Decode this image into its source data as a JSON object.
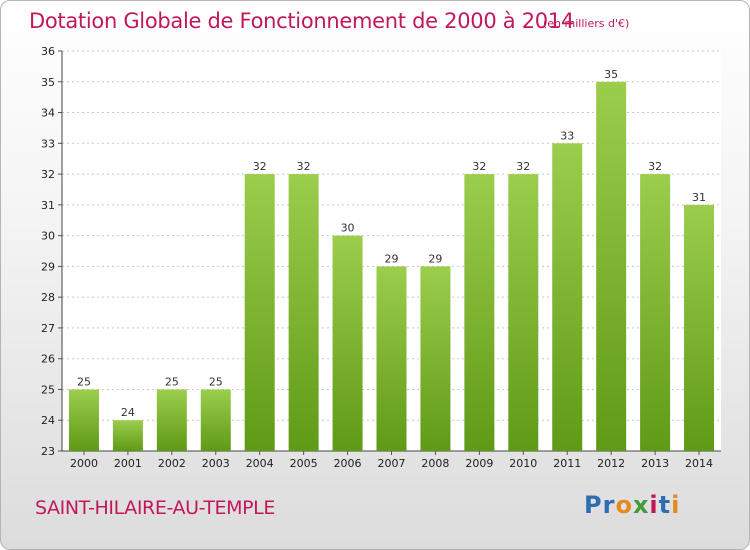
{
  "title": "Dotation Globale de Fonctionnement de 2000 à 2014",
  "subtitle": "(en milliers d'€)",
  "commune": "SAINT-HILAIRE-AU-TEMPLE",
  "logo": [
    "Pr",
    "o",
    "x",
    "i",
    "t",
    "i"
  ],
  "colors": {
    "bar_top": "#9ccd4d",
    "bar_bottom": "#5f9a16",
    "title": "#c2185b",
    "grid": "#c8c8c8"
  },
  "chart_data": {
    "type": "bar",
    "categories": [
      "2000",
      "2001",
      "2002",
      "2003",
      "2004",
      "2005",
      "2006",
      "2007",
      "2008",
      "2009",
      "2010",
      "2011",
      "2012",
      "2013",
      "2014"
    ],
    "values": [
      25,
      24,
      25,
      25,
      32,
      32,
      30,
      29,
      29,
      32,
      32,
      33,
      35,
      32,
      31
    ],
    "ylim": [
      23,
      36
    ],
    "yticks": [
      23,
      24,
      25,
      26,
      27,
      28,
      29,
      30,
      31,
      32,
      33,
      34,
      35,
      36
    ],
    "grid": true,
    "title": "Dotation Globale de Fonctionnement de 2000 à 2014",
    "xlabel": "",
    "ylabel": ""
  }
}
